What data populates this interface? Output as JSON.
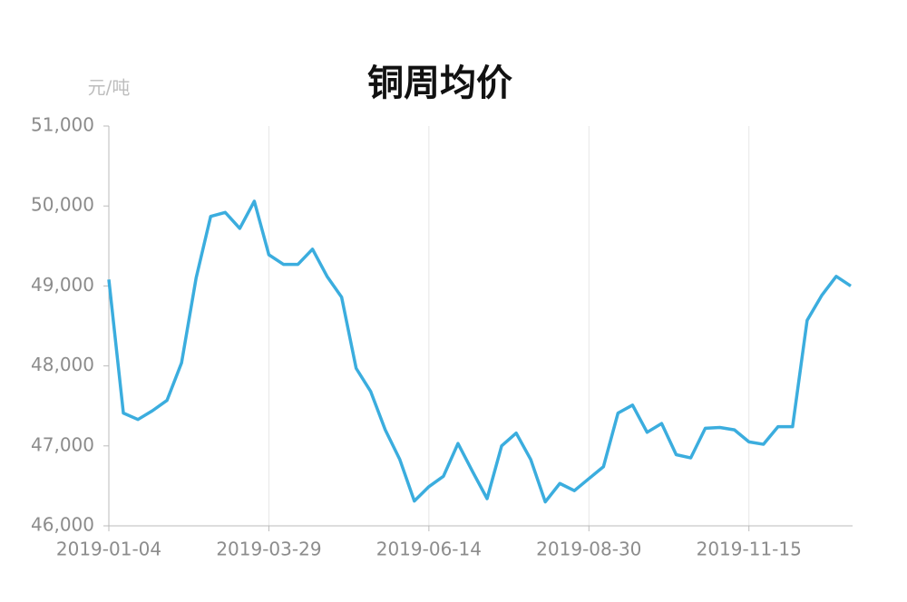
{
  "chart_data": {
    "type": "line",
    "title": "铜周均价",
    "y_axis_label": "元/吨",
    "categories": [
      "2019-01-04",
      null,
      null,
      null,
      null,
      null,
      null,
      null,
      null,
      null,
      null,
      "2019-03-29",
      null,
      null,
      null,
      null,
      null,
      null,
      null,
      null,
      null,
      null,
      "2019-06-14",
      null,
      null,
      null,
      null,
      null,
      null,
      null,
      null,
      null,
      null,
      "2019-08-30",
      null,
      null,
      null,
      null,
      null,
      null,
      null,
      null,
      null,
      null,
      "2019-11-15",
      null,
      null,
      null,
      null,
      null,
      null,
      null
    ],
    "values": [
      49080,
      47410,
      47330,
      47440,
      47570,
      48040,
      49100,
      49870,
      49920,
      49720,
      50060,
      49390,
      49270,
      49270,
      49460,
      49120,
      48860,
      47970,
      47680,
      47200,
      46830,
      46310,
      46490,
      46620,
      47030,
      46680,
      46340,
      47000,
      47160,
      46830,
      46300,
      46530,
      46440,
      46590,
      46740,
      47410,
      47510,
      47170,
      47280,
      46890,
      46850,
      47220,
      47230,
      47200,
      47050,
      47020,
      47240,
      47240,
      48570,
      48880,
      49120,
      49000
    ],
    "color": "#3badde",
    "ylim": [
      46000,
      51000
    ],
    "yticks": [
      {
        "value": 46000,
        "label": "46,000"
      },
      {
        "value": 47000,
        "label": "47,000"
      },
      {
        "value": 48000,
        "label": "48,000"
      },
      {
        "value": 49000,
        "label": "49,000"
      },
      {
        "value": 50000,
        "label": "50,000"
      },
      {
        "value": 51000,
        "label": "51,000"
      }
    ],
    "grid": true
  }
}
